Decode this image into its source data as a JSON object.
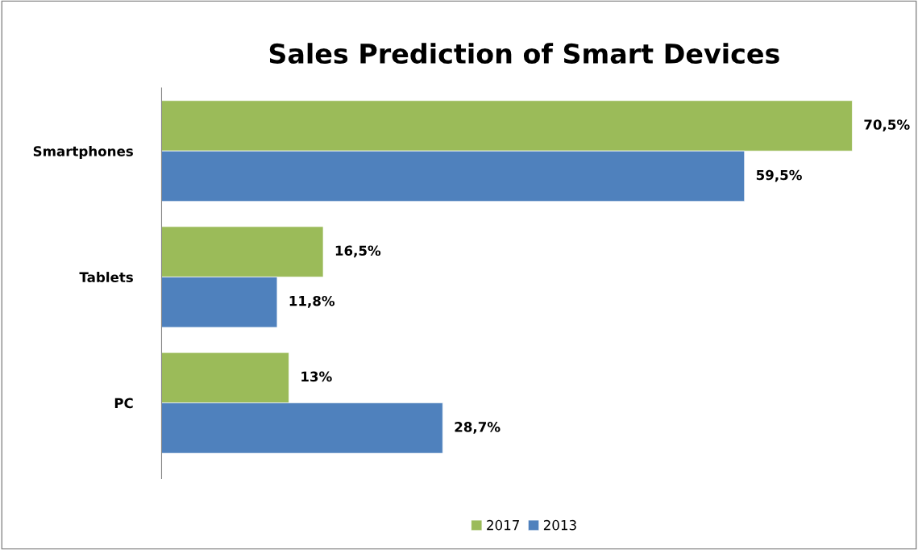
{
  "chart_data": {
    "type": "bar",
    "orientation": "horizontal",
    "title": "Sales Prediction of Smart Devices",
    "categories": [
      "Smartphones",
      "Tablets",
      "PC"
    ],
    "series": [
      {
        "name": "2017",
        "color": "#9bbb59",
        "values": [
          70.5,
          16.5,
          13
        ],
        "value_labels": [
          "70,5%",
          "16,5%",
          "13%"
        ]
      },
      {
        "name": "2013",
        "color": "#4f81bd",
        "values": [
          59.5,
          11.8,
          28.7
        ],
        "value_labels": [
          "59,5%",
          "11,8%",
          "28,7%"
        ]
      }
    ],
    "legend": "bottom",
    "grid": false
  }
}
